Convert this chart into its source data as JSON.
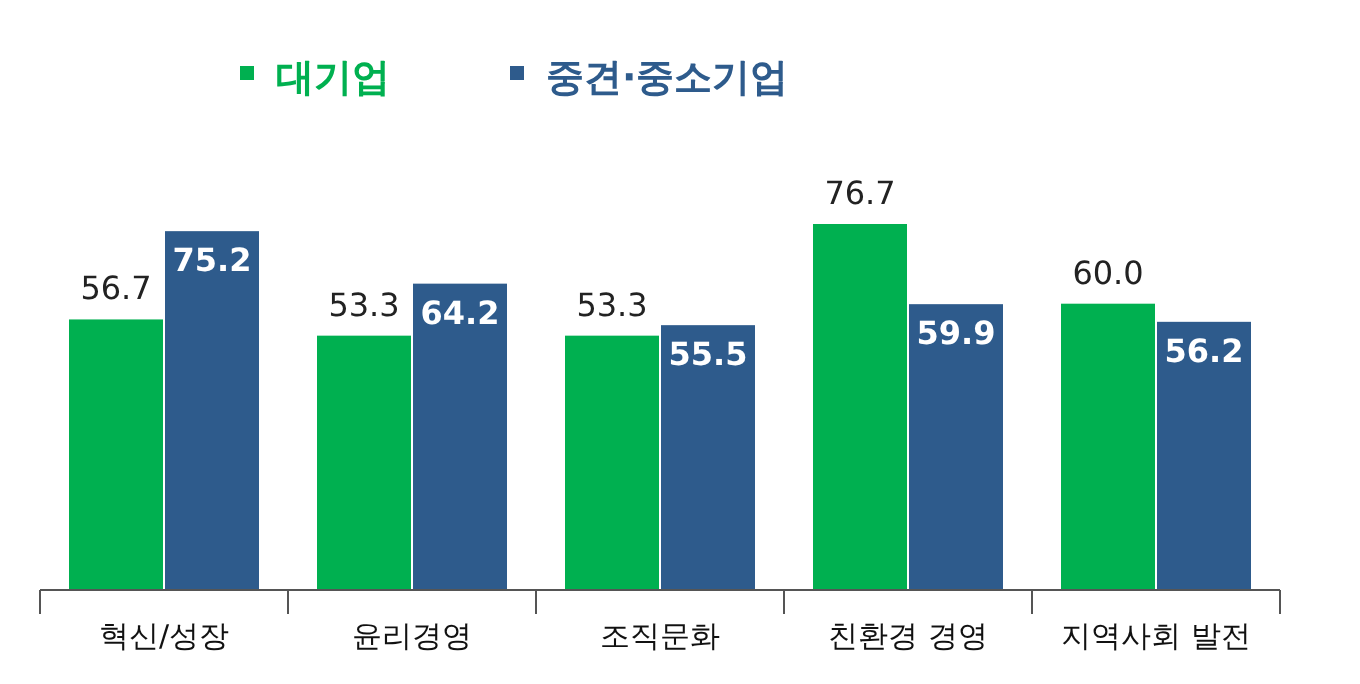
{
  "chart_data": {
    "type": "bar",
    "categories": [
      "혁신/성장",
      "윤리경영",
      "조직문화",
      "친환경 경영",
      "지역사회 발전"
    ],
    "series": [
      {
        "name": "대기업",
        "color": "#00b050",
        "values": [
          56.7,
          53.3,
          53.3,
          76.7,
          60.0
        ],
        "value_labels": [
          "56.7",
          "53.3",
          "53.3",
          "76.7",
          "60.0"
        ]
      },
      {
        "name": "중견·중소기업",
        "color": "#2e5b8c",
        "values": [
          75.2,
          64.2,
          55.5,
          59.9,
          56.2
        ],
        "value_labels": [
          "75.2",
          "64.2",
          "55.5",
          "59.9",
          "56.2"
        ]
      }
    ],
    "legend": "top",
    "data_labels": true
  }
}
